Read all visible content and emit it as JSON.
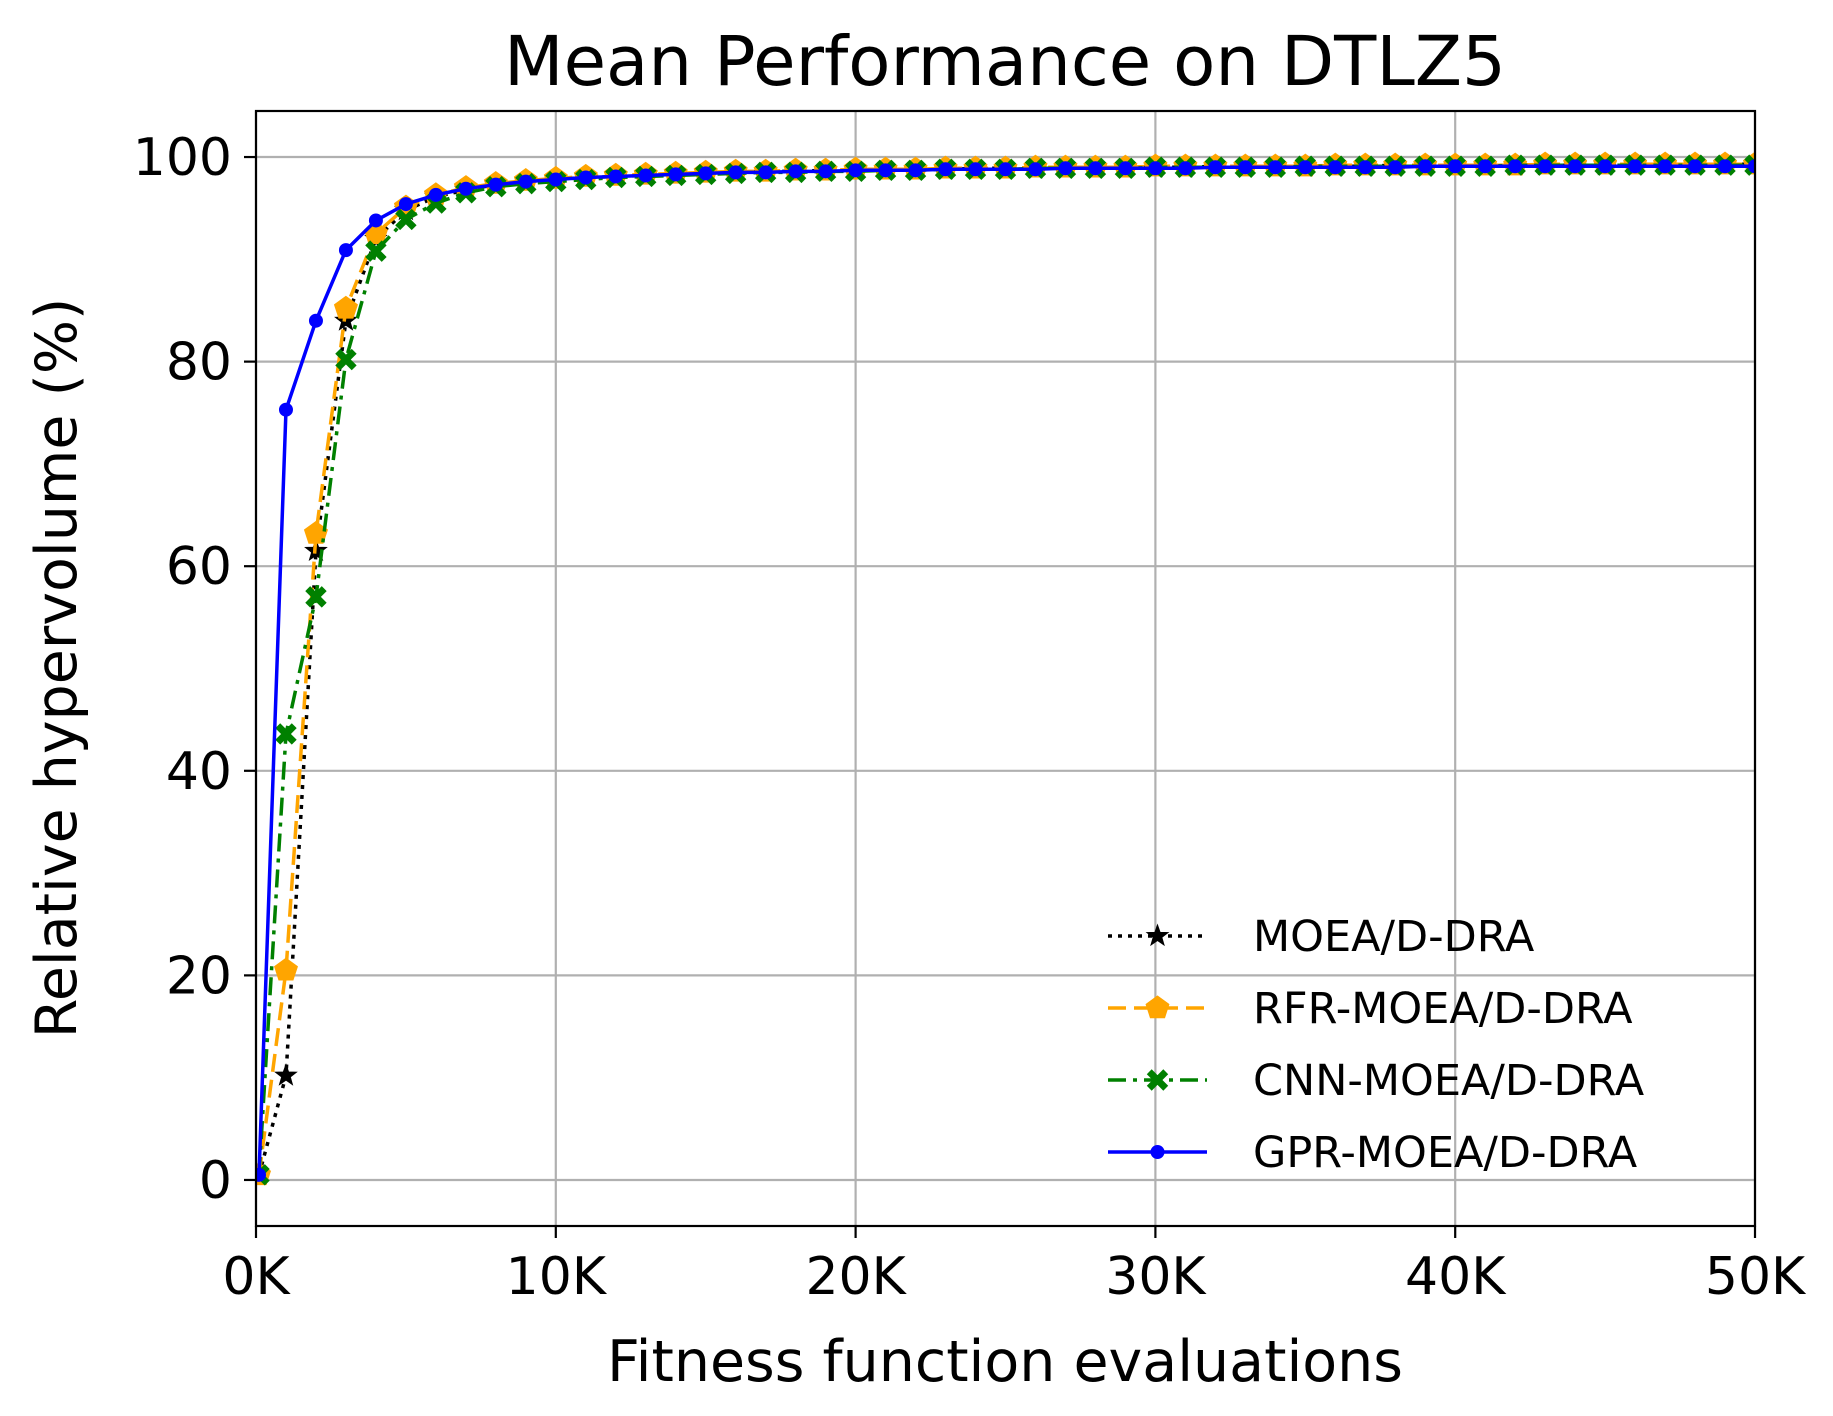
{
  "chart_data": {
    "type": "line",
    "title": "Mean Performance on DTLZ5",
    "xlabel": "Fitness function evaluations",
    "ylabel": "Relative hypervolume (%)",
    "xlim": [
      0,
      50000
    ],
    "ylim": [
      -4.5,
      104.5
    ],
    "xticks": [
      0,
      10000,
      20000,
      30000,
      40000,
      50000
    ],
    "xtick_labels": [
      "0K",
      "10K",
      "20K",
      "30K",
      "40K",
      "50K"
    ],
    "yticks": [
      0,
      20,
      40,
      60,
      80,
      100
    ],
    "ytick_labels": [
      "0",
      "20",
      "40",
      "60",
      "80",
      "100"
    ],
    "grid": true,
    "legend_position": "lower-right",
    "x": [
      100,
      1000,
      2000,
      3000,
      4000,
      5000,
      6000,
      7000,
      8000,
      9000,
      10000,
      11000,
      12000,
      13000,
      14000,
      15000,
      16000,
      17000,
      18000,
      19000,
      20000,
      21000,
      22000,
      23000,
      24000,
      25000,
      26000,
      27000,
      28000,
      29000,
      30000,
      31000,
      32000,
      33000,
      34000,
      35000,
      36000,
      37000,
      38000,
      39000,
      40000,
      41000,
      42000,
      43000,
      44000,
      45000,
      46000,
      47000,
      48000,
      49000,
      50000
    ],
    "series": [
      {
        "name": "MOEA/D-DRA",
        "color": "#000000",
        "dash": "dotted",
        "marker": "star",
        "values": [
          0.5,
          10.2,
          61.5,
          84.0,
          92.0,
          94.8,
          96.1,
          96.8,
          97.3,
          97.6,
          97.8,
          98.0,
          98.1,
          98.2,
          98.3,
          98.4,
          98.5,
          98.6,
          98.6,
          98.7,
          98.7,
          98.8,
          98.8,
          98.8,
          98.9,
          98.9,
          98.9,
          99.0,
          99.0,
          99.0,
          99.0,
          99.0,
          99.1,
          99.1,
          99.1,
          99.1,
          99.1,
          99.1,
          99.2,
          99.2,
          99.2,
          99.2,
          99.2,
          99.2,
          99.2,
          99.2,
          99.3,
          99.3,
          99.3,
          99.3,
          99.3
        ]
      },
      {
        "name": "RFR-MOEA/D-DRA",
        "color": "#FFA500",
        "dash": "dashed",
        "marker": "pentagon",
        "values": [
          0.5,
          20.5,
          63.2,
          85.2,
          92.5,
          95.1,
          96.3,
          97.0,
          97.4,
          97.7,
          97.9,
          98.1,
          98.2,
          98.3,
          98.4,
          98.5,
          98.6,
          98.6,
          98.7,
          98.7,
          98.8,
          98.8,
          98.8,
          98.9,
          98.9,
          98.9,
          99.0,
          99.0,
          99.0,
          99.0,
          99.1,
          99.1,
          99.1,
          99.1,
          99.1,
          99.1,
          99.2,
          99.2,
          99.2,
          99.2,
          99.2,
          99.2,
          99.2,
          99.3,
          99.3,
          99.3,
          99.3,
          99.3,
          99.3,
          99.3,
          99.3
        ]
      },
      {
        "name": "CNN-MOEA/D-DRA",
        "color": "#008000",
        "dash": "dashdot",
        "marker": "x-filled",
        "values": [
          0.5,
          43.6,
          57.0,
          80.2,
          90.8,
          93.9,
          95.5,
          96.5,
          97.1,
          97.4,
          97.6,
          97.8,
          98.0,
          98.1,
          98.2,
          98.3,
          98.4,
          98.5,
          98.5,
          98.6,
          98.6,
          98.7,
          98.7,
          98.8,
          98.8,
          98.8,
          98.9,
          98.9,
          98.9,
          98.9,
          99.0,
          99.0,
          99.0,
          99.0,
          99.0,
          99.1,
          99.1,
          99.1,
          99.1,
          99.1,
          99.1,
          99.1,
          99.2,
          99.2,
          99.2,
          99.2,
          99.2,
          99.2,
          99.2,
          99.2,
          99.2
        ]
      },
      {
        "name": "GPR-MOEA/D-DRA",
        "color": "#0000FF",
        "dash": "solid",
        "marker": "circle",
        "values": [
          0.5,
          75.3,
          84.0,
          90.9,
          93.8,
          95.4,
          96.3,
          96.9,
          97.3,
          97.6,
          97.8,
          98.0,
          98.1,
          98.2,
          98.3,
          98.4,
          98.5,
          98.5,
          98.6,
          98.6,
          98.7,
          98.7,
          98.7,
          98.8,
          98.8,
          98.8,
          98.8,
          98.9,
          98.9,
          98.9,
          98.9,
          98.9,
          99.0,
          99.0,
          99.0,
          99.0,
          99.0,
          99.0,
          99.0,
          99.1,
          99.1,
          99.1,
          99.1,
          99.1,
          99.1,
          99.1,
          99.1,
          99.1,
          99.1,
          99.1,
          99.1
        ]
      }
    ]
  }
}
